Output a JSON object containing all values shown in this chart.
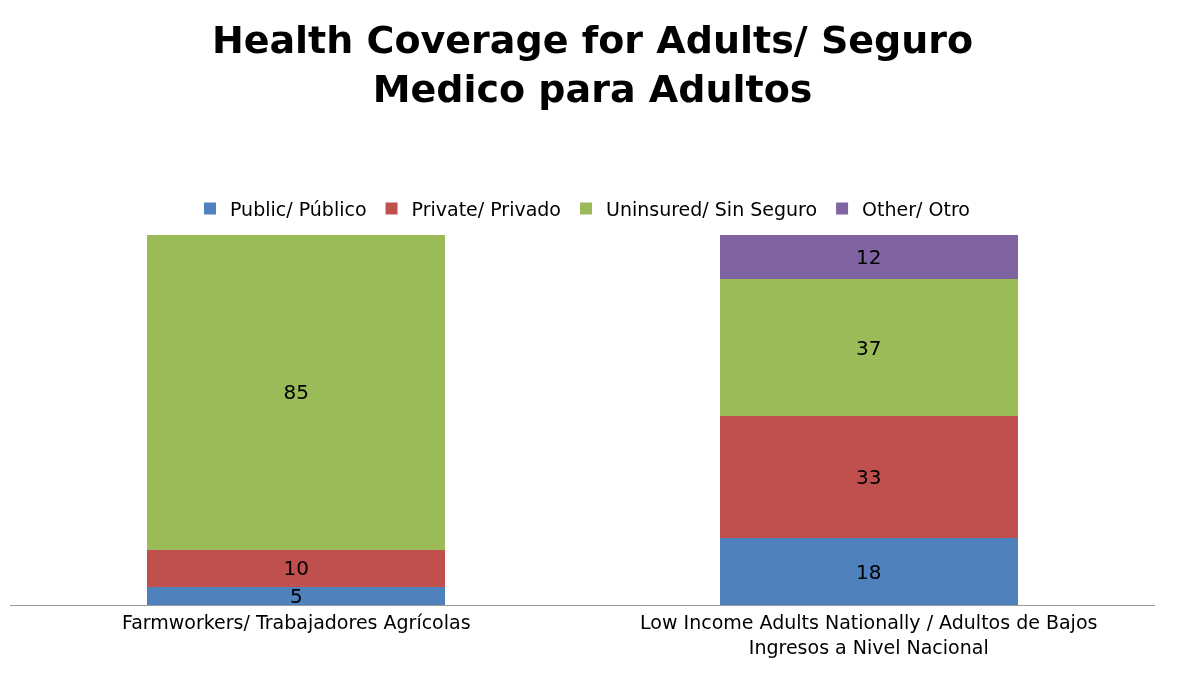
{
  "chart_data": {
    "type": "bar",
    "title": "Health Coverage for Adults/ Seguro Medico para Adultos",
    "stacked": true,
    "data_labels": true,
    "legend": "top",
    "categories": [
      "Farmworkers/ Trabajadores Agrícolas",
      "Low Income Adults Nationally / Adultos de Bajos Ingresos a Nivel Nacional"
    ],
    "series": [
      {
        "name": "Public/ Público",
        "color": "#4f81bd",
        "values": [
          5,
          18
        ]
      },
      {
        "name": "Private/ Privado",
        "color": "#c0504d",
        "values": [
          10,
          33
        ]
      },
      {
        "name": "Uninsured/ Sin Seguro",
        "color": "#9bbb59",
        "values": [
          85,
          37
        ]
      },
      {
        "name": "Other/ Otro",
        "color": "#8064a2",
        "values": [
          null,
          12
        ]
      }
    ]
  }
}
